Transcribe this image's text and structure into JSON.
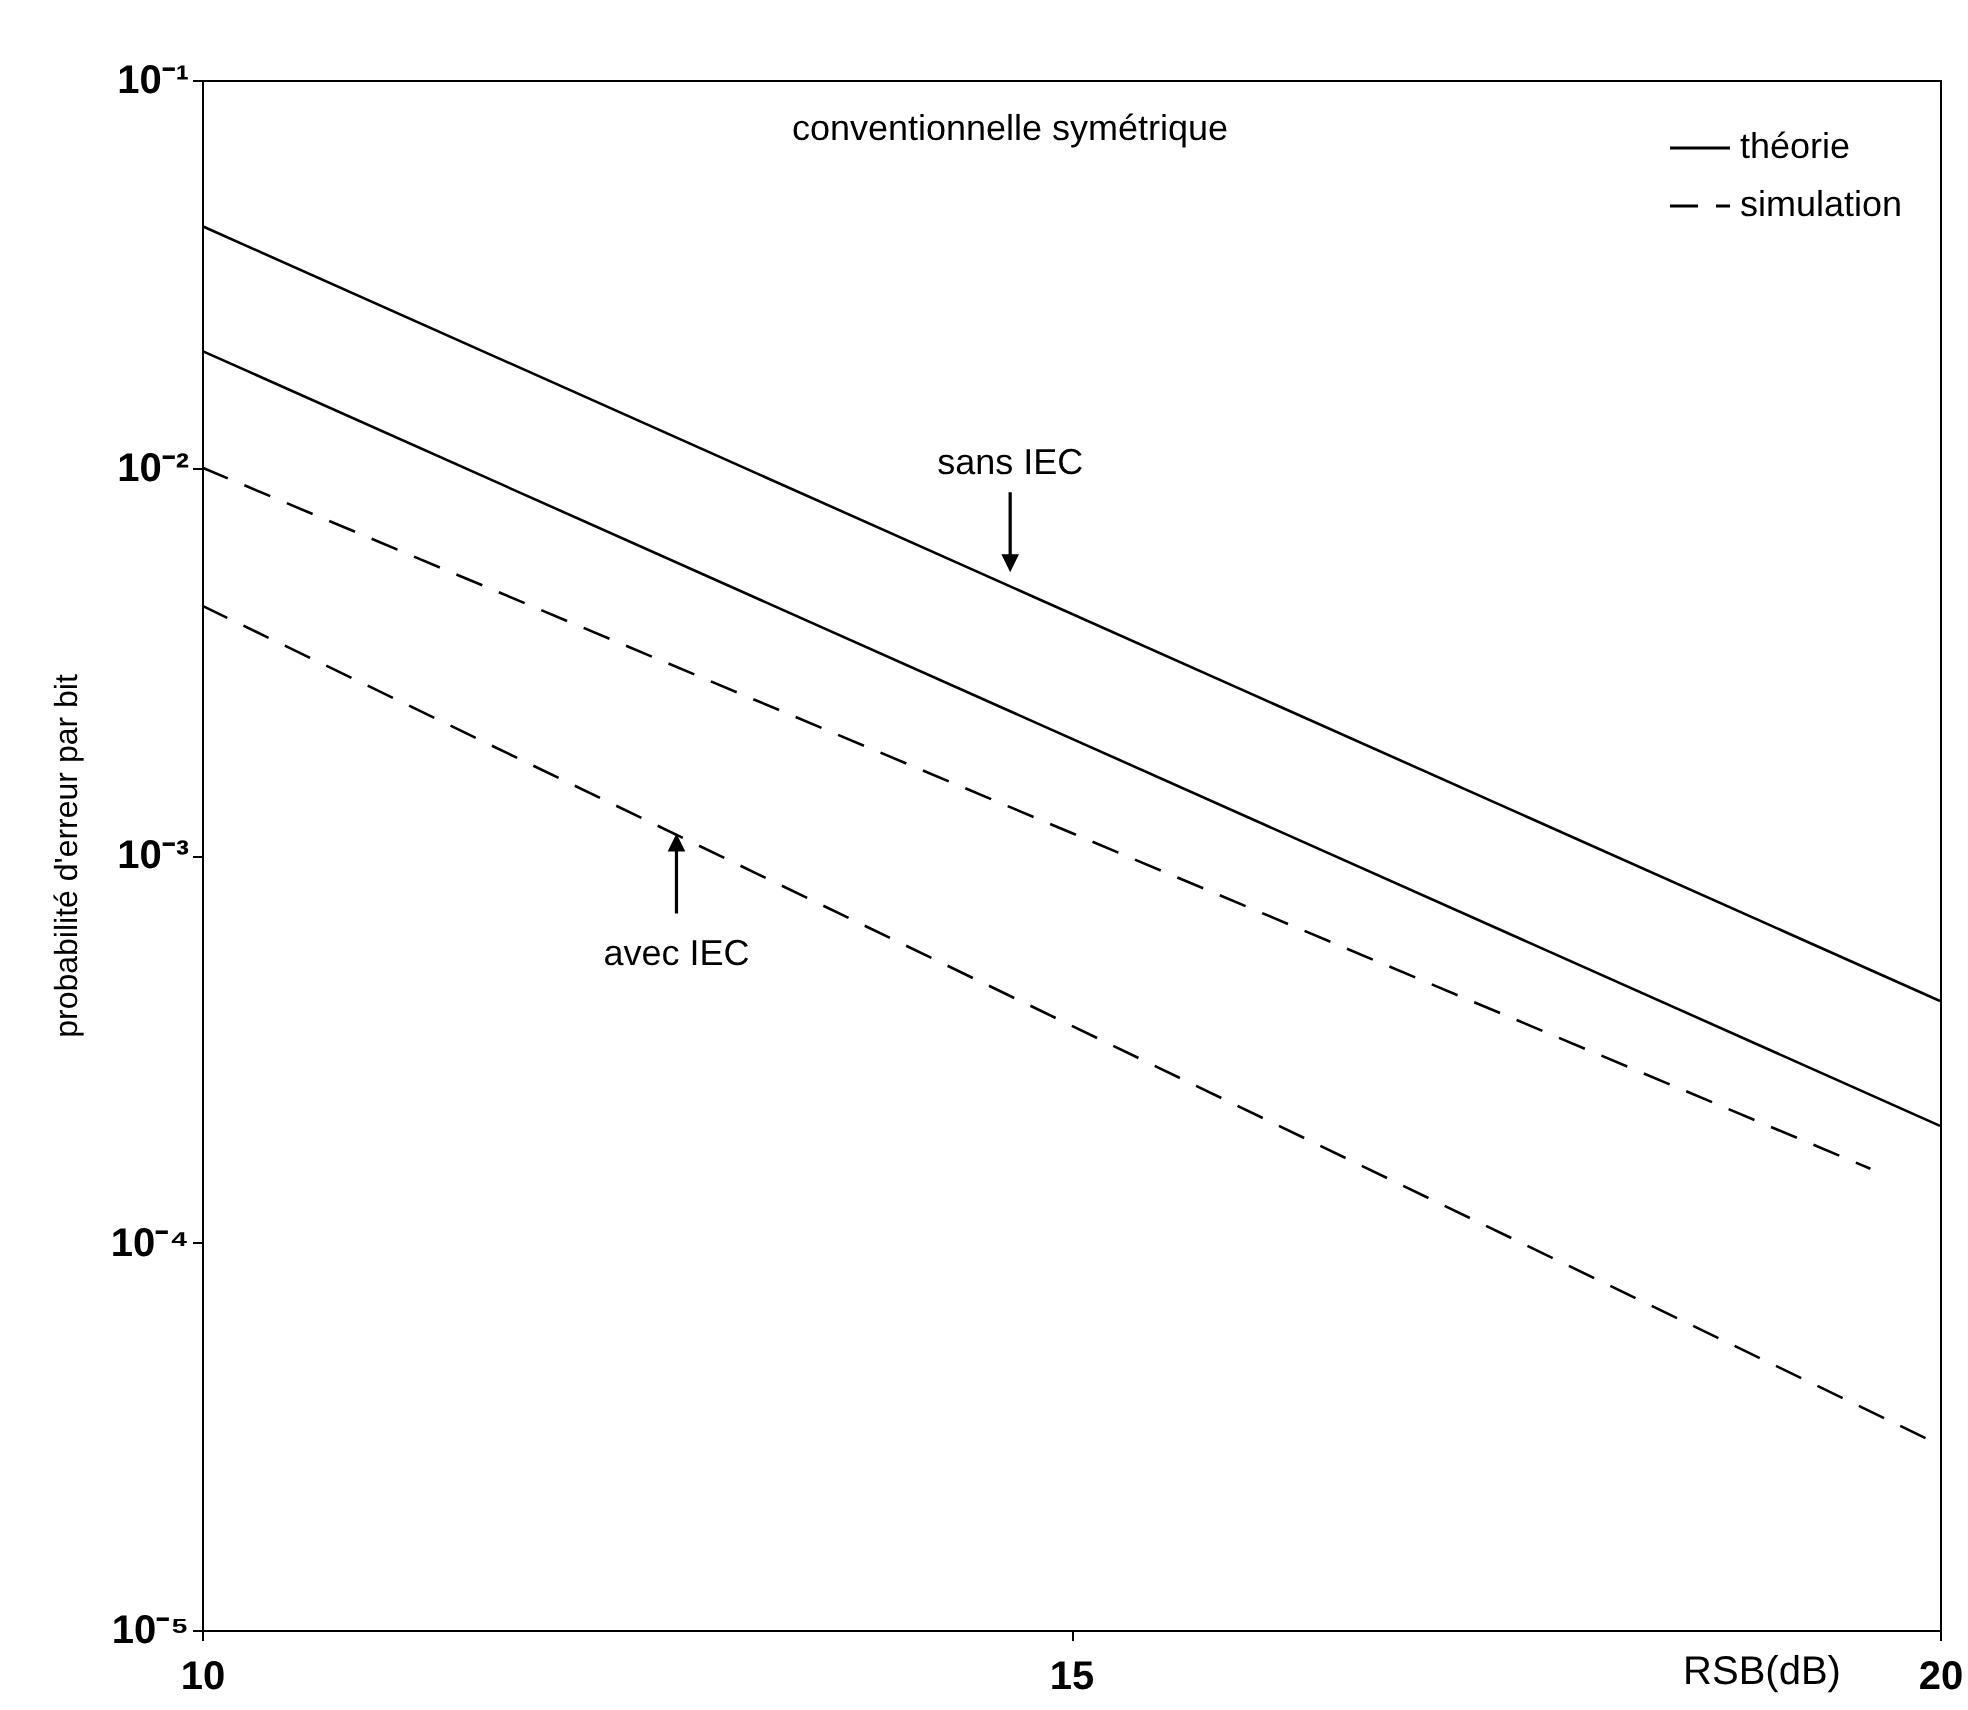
{
  "chart_data": {
    "type": "line",
    "xlabel": "RSB(dB)",
    "ylabel": "probabilité d'erreur par bit",
    "log": "y",
    "xlim": [
      10,
      20
    ],
    "xticks": [
      10,
      15,
      20
    ],
    "ylim": [
      1e-05,
      0.1
    ],
    "yticks": [
      {
        "value": 0.1,
        "label": "10⁻¹"
      },
      {
        "value": 0.01,
        "label": "10⁻²"
      },
      {
        "value": 0.001,
        "label": "10⁻³"
      },
      {
        "value": 0.0001,
        "label": "10⁻⁴"
      },
      {
        "value": 1e-05,
        "label": "10⁻⁵"
      }
    ],
    "legend": "top right",
    "grid": false,
    "series": [
      {
        "name": "théorie",
        "color": "#000000",
        "line_style": "solid",
        "x": [
          10,
          20
        ],
        "values": [
          0.042,
          0.00042
        ]
      },
      {
        "color": "#000000",
        "line_style": "solid",
        "x": [
          10,
          20
        ],
        "values": [
          0.02,
          0.0002
        ]
      },
      {
        "name": "simulation",
        "color": "#000000",
        "line_style": "dashed",
        "x": [
          10,
          19.6
        ],
        "values": [
          0.01,
          0.000155
        ]
      },
      {
        "color": "#000000",
        "line_style": "dashed",
        "x": [
          10,
          20
        ],
        "values": [
          0.0044,
          3e-05
        ]
      }
    ],
    "annotations": [
      "conventionnelle symétrique",
      {
        "text": "sans IEC",
        "x": 14.65,
        "y": 0.0053
      },
      {
        "text": "avec IEC",
        "x": 12.73,
        "y": 0.00115
      }
    ]
  }
}
